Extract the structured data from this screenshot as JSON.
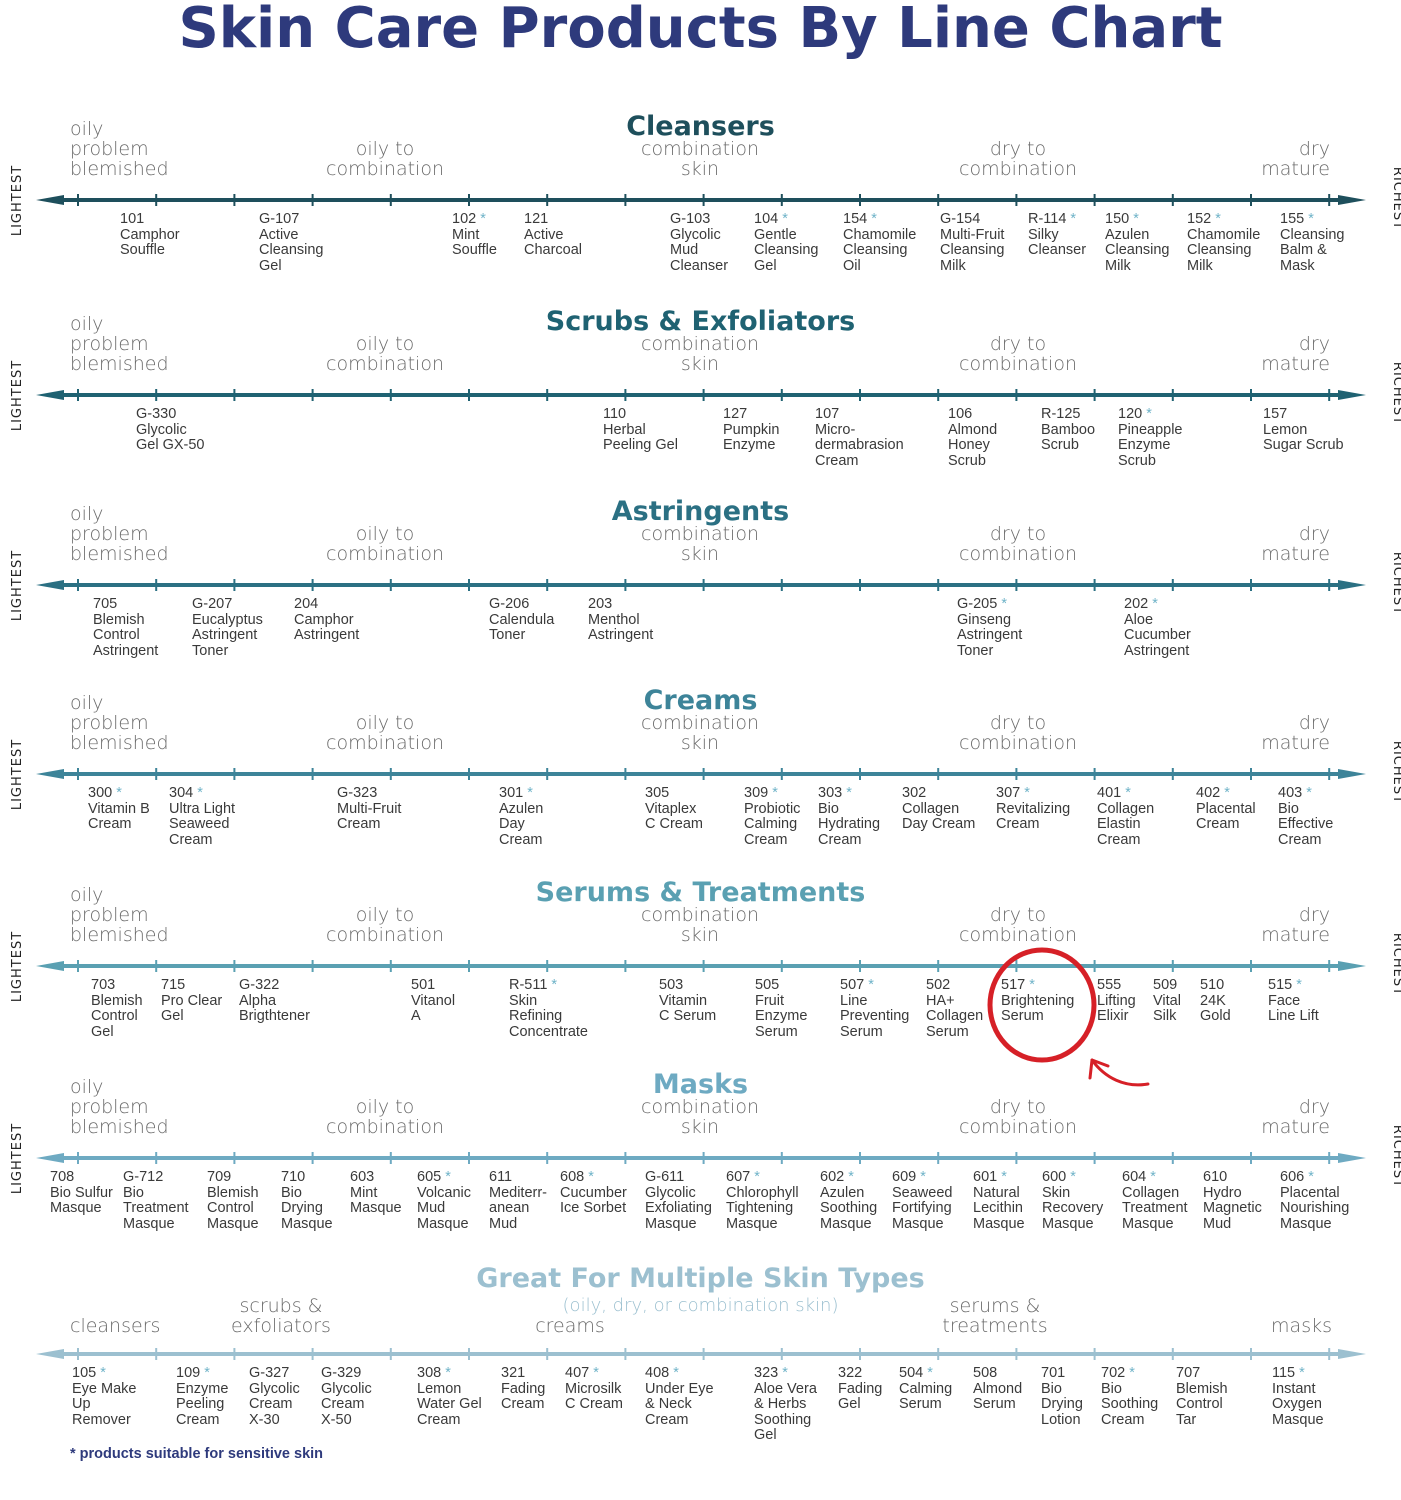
{
  "title": "Skin Care Products By Line Chart",
  "side_left": "LIGHTEST",
  "side_right": "RICHEST",
  "footnote": "* products suitable for sensitive skin",
  "skin_labels": {
    "oily": "oily\nproblem\nblemished",
    "oily_combo": "oily to\ncombination",
    "combo": "combination\nskin",
    "dry_combo": "dry to\ncombination",
    "dry": "dry\nmature"
  },
  "colors": {
    "title": "#2e3a7c",
    "star": "#6fb3c8",
    "highlight_circle": "#d62027"
  },
  "sections": [
    {
      "title": "Cleansers",
      "color": "#1e4f5c",
      "products": [
        {
          "code": "101",
          "star": false,
          "name": "Camphor\nSouffle"
        },
        {
          "code": "G-107",
          "star": false,
          "name": "Active\nCleansing\nGel"
        },
        {
          "code": "102",
          "star": true,
          "name": "Mint\nSouffle"
        },
        {
          "code": "121",
          "star": false,
          "name": "Active\nCharcoal"
        },
        {
          "code": "G-103",
          "star": false,
          "name": "Glycolic\nMud\nCleanser"
        },
        {
          "code": "104",
          "star": true,
          "name": "Gentle\nCleansing\nGel"
        },
        {
          "code": "154",
          "star": true,
          "name": "Chamomile\nCleansing\nOil"
        },
        {
          "code": "G-154",
          "star": false,
          "name": "Multi-Fruit\nCleansing\nMilk"
        },
        {
          "code": "R-114",
          "star": true,
          "name": "Silky\nCleanser"
        },
        {
          "code": "150",
          "star": true,
          "name": "Azulen\nCleansing\nMilk"
        },
        {
          "code": "152",
          "star": true,
          "name": "Chamomile\nCleansing\nMilk"
        },
        {
          "code": "155",
          "star": true,
          "name": "Cleansing\nBalm &\nMask"
        }
      ]
    },
    {
      "title": "Scrubs & Exfoliators",
      "color": "#1f6272",
      "products": [
        {
          "code": "G-330",
          "star": false,
          "name": "Glycolic\nGel GX-50"
        },
        {
          "code": "110",
          "star": false,
          "name": "Herbal\nPeeling Gel"
        },
        {
          "code": "127",
          "star": false,
          "name": "Pumpkin\nEnzyme"
        },
        {
          "code": "107",
          "star": false,
          "name": "Micro-\ndermabrasion\nCream"
        },
        {
          "code": "106",
          "star": false,
          "name": "Almond\nHoney\nScrub"
        },
        {
          "code": "R-125",
          "star": false,
          "name": "Bamboo\nScrub"
        },
        {
          "code": "120",
          "star": true,
          "name": "Pineapple\nEnzyme\nScrub"
        },
        {
          "code": "157",
          "star": false,
          "name": "Lemon\nSugar Scrub"
        }
      ]
    },
    {
      "title": "Astringents",
      "color": "#2b7083",
      "products": [
        {
          "code": "705",
          "star": false,
          "name": "Blemish\nControl\nAstringent"
        },
        {
          "code": "G-207",
          "star": false,
          "name": "Eucalyptus\nAstringent\nToner"
        },
        {
          "code": "204",
          "star": false,
          "name": "Camphor\nAstringent"
        },
        {
          "code": "G-206",
          "star": false,
          "name": "Calendula\nToner"
        },
        {
          "code": "203",
          "star": false,
          "name": "Menthol\nAstringent"
        },
        {
          "code": "G-205",
          "star": true,
          "name": "Ginseng\nAstringent\nToner"
        },
        {
          "code": "202",
          "star": true,
          "name": "Aloe\nCucumber\nAstringent"
        }
      ]
    },
    {
      "title": "Creams",
      "color": "#3d8499",
      "products": [
        {
          "code": "300",
          "star": true,
          "name": "Vitamin B\nCream"
        },
        {
          "code": "304",
          "star": true,
          "name": "Ultra Light\nSeaweed\nCream"
        },
        {
          "code": "G-323",
          "star": false,
          "name": "Multi-Fruit\nCream"
        },
        {
          "code": "301",
          "star": true,
          "name": "Azulen\nDay\nCream"
        },
        {
          "code": "305",
          "star": false,
          "name": "Vitaplex\nC Cream"
        },
        {
          "code": "309",
          "star": true,
          "name": "Probiotic\nCalming\nCream"
        },
        {
          "code": "303",
          "star": true,
          "name": "Bio\nHydrating\nCream"
        },
        {
          "code": "302",
          "star": false,
          "name": "Collagen\nDay Cream"
        },
        {
          "code": "307",
          "star": true,
          "name": "Revitalizing\nCream"
        },
        {
          "code": "401",
          "star": true,
          "name": "Collagen\nElastin\nCream"
        },
        {
          "code": "402",
          "star": true,
          "name": "Placental\nCream"
        },
        {
          "code": "403",
          "star": true,
          "name": "Bio\nEffective\nCream"
        }
      ]
    },
    {
      "title": "Serums & Treatments",
      "color": "#5aa0b2",
      "products": [
        {
          "code": "703",
          "star": false,
          "name": "Blemish\nControl\nGel"
        },
        {
          "code": "715",
          "star": false,
          "name": "Pro Clear\nGel"
        },
        {
          "code": "G-322",
          "star": false,
          "name": "Alpha\nBrigthtener"
        },
        {
          "code": "501",
          "star": false,
          "name": "Vitanol\nA"
        },
        {
          "code": "R-511",
          "star": true,
          "name": "Skin\nRefining\nConcentrate"
        },
        {
          "code": "503",
          "star": false,
          "name": "Vitamin\nC Serum"
        },
        {
          "code": "505",
          "star": false,
          "name": "Fruit\nEnzyme\nSerum"
        },
        {
          "code": "507",
          "star": true,
          "name": "Line\nPreventing\nSerum"
        },
        {
          "code": "502",
          "star": false,
          "name": "HA+\nCollagen\nSerum"
        },
        {
          "code": "517",
          "star": true,
          "name": "Brightening\nSerum"
        },
        {
          "code": "555",
          "star": false,
          "name": "Lifting\nElixir"
        },
        {
          "code": "509",
          "star": false,
          "name": "Vital\nSilk"
        },
        {
          "code": "510",
          "star": false,
          "name": "24K\nGold"
        },
        {
          "code": "515",
          "star": true,
          "name": "Face\nLine Lift"
        }
      ]
    },
    {
      "title": "Masks",
      "color": "#6eaac2",
      "products": [
        {
          "code": "708",
          "star": false,
          "name": "Bio Sulfur\nMasque"
        },
        {
          "code": "G-712",
          "star": false,
          "name": "Bio\nTreatment\nMasque"
        },
        {
          "code": "709",
          "star": false,
          "name": "Blemish\nControl\nMasque"
        },
        {
          "code": "710",
          "star": false,
          "name": "Bio\nDrying\nMasque"
        },
        {
          "code": "603",
          "star": false,
          "name": "Mint\nMasque"
        },
        {
          "code": "605",
          "star": true,
          "name": "Volcanic\nMud\nMasque"
        },
        {
          "code": "611",
          "star": false,
          "name": "Mediterr-\nanean\nMud"
        },
        {
          "code": "608",
          "star": true,
          "name": "Cucumber\nIce Sorbet"
        },
        {
          "code": "G-611",
          "star": false,
          "name": "Glycolic\nExfoliating\nMasque"
        },
        {
          "code": "607",
          "star": true,
          "name": "Chlorophyll\nTightening\nMasque"
        },
        {
          "code": "602",
          "star": true,
          "name": "Azulen\nSoothing\nMasque"
        },
        {
          "code": "609",
          "star": true,
          "name": "Seaweed\nFortifying\nMasque"
        },
        {
          "code": "601",
          "star": true,
          "name": "Natural\nLecithin\nMasque"
        },
        {
          "code": "600",
          "star": true,
          "name": "Skin\nRecovery\nMasque"
        },
        {
          "code": "604",
          "star": true,
          "name": "Collagen\nTreatment\nMasque"
        },
        {
          "code": "610",
          "star": false,
          "name": "Hydro\nMagnetic\nMud"
        },
        {
          "code": "606",
          "star": true,
          "name": "Placental\nNourishing\nMasque"
        }
      ]
    }
  ],
  "multi": {
    "title": "Great For Multiple Skin Types",
    "subtitle": "(oily, dry, or combination skin)",
    "color": "#9cc0d0",
    "labels": {
      "cleansers": "cleansers",
      "scrubs": "scrubs &\nexfoliators",
      "creams": "creams",
      "serums": "serums &\ntreatments",
      "masks": "masks"
    },
    "products": [
      {
        "code": "105",
        "star": true,
        "name": "Eye Make\nUp\nRemover"
      },
      {
        "code": "109",
        "star": true,
        "name": "Enzyme\nPeeling\nCream"
      },
      {
        "code": "G-327",
        "star": false,
        "name": "Glycolic\nCream\nX-30"
      },
      {
        "code": "G-329",
        "star": false,
        "name": "Glycolic\nCream\nX-50"
      },
      {
        "code": "308",
        "star": true,
        "name": "Lemon\nWater Gel\nCream"
      },
      {
        "code": "321",
        "star": false,
        "name": "Fading\nCream"
      },
      {
        "code": "407",
        "star": true,
        "name": "Microsilk\nC Cream"
      },
      {
        "code": "408",
        "star": true,
        "name": "Under Eye\n& Neck\nCream"
      },
      {
        "code": "323",
        "star": true,
        "name": "Aloe Vera\n& Herbs\nSoothing\nGel"
      },
      {
        "code": "322",
        "star": false,
        "name": "Fading\nGel"
      },
      {
        "code": "504",
        "star": true,
        "name": "Calming\nSerum"
      },
      {
        "code": "508",
        "star": false,
        "name": "Almond\nSerum"
      },
      {
        "code": "701",
        "star": false,
        "name": "Bio\nDrying\nLotion"
      },
      {
        "code": "702",
        "star": true,
        "name": "Bio\nSoothing\nCream"
      },
      {
        "code": "707",
        "star": false,
        "name": "Blemish\nControl\nTar"
      },
      {
        "code": "115",
        "star": true,
        "name": "Instant\nOxygen\nMasque"
      }
    ]
  }
}
